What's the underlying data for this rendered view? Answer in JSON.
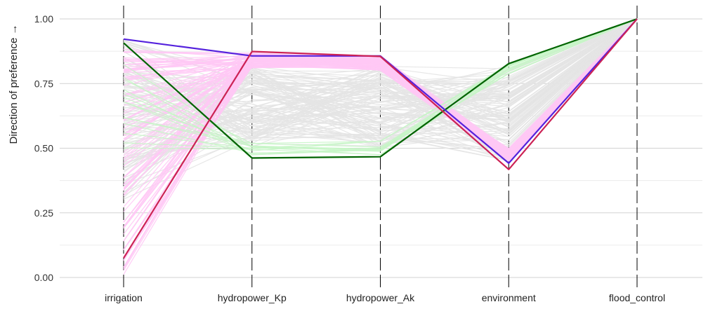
{
  "chart_data": {
    "type": "parallel-coordinates",
    "title": "",
    "ylabel": "Direction of preference →",
    "ylim": [
      0,
      1
    ],
    "yticks": [
      0,
      0.25,
      0.5,
      0.75,
      1
    ],
    "ytick_labels": [
      "0.00",
      "0.25",
      "0.50",
      "0.75",
      "1.00"
    ],
    "grid": true,
    "categories": [
      "irrigation",
      "hydropower_Kp",
      "hydropower_Ak",
      "environment",
      "flood_control"
    ],
    "background_bands": [
      {
        "color": "#e4e4e4",
        "count": 120,
        "ranges": [
          [
            0.3,
            0.92
          ],
          [
            0.5,
            0.82
          ],
          [
            0.5,
            0.82
          ],
          [
            0.45,
            0.82
          ],
          [
            1,
            1
          ]
        ]
      },
      {
        "color": "#ffc8f5",
        "count": 90,
        "ranges": [
          [
            0.01,
            0.9
          ],
          [
            0.81,
            0.87
          ],
          [
            0.8,
            0.86
          ],
          [
            0.45,
            0.5
          ],
          [
            1,
            1
          ]
        ]
      },
      {
        "color": "#c7f5c7",
        "count": 14,
        "ranges": [
          [
            0.5,
            0.91
          ],
          [
            0.47,
            0.52
          ],
          [
            0.47,
            0.53
          ],
          [
            0.78,
            0.83
          ],
          [
            1,
            1
          ]
        ]
      }
    ],
    "highlighted": [
      {
        "color": "#006400",
        "values": [
          0.907,
          0.462,
          0.467,
          0.827,
          1.0
        ]
      },
      {
        "color": "#5522dd",
        "values": [
          0.922,
          0.857,
          0.857,
          0.442,
          1.0
        ]
      },
      {
        "color": "#cc2255",
        "values": [
          0.075,
          0.874,
          0.855,
          0.418,
          1.0
        ]
      }
    ]
  }
}
